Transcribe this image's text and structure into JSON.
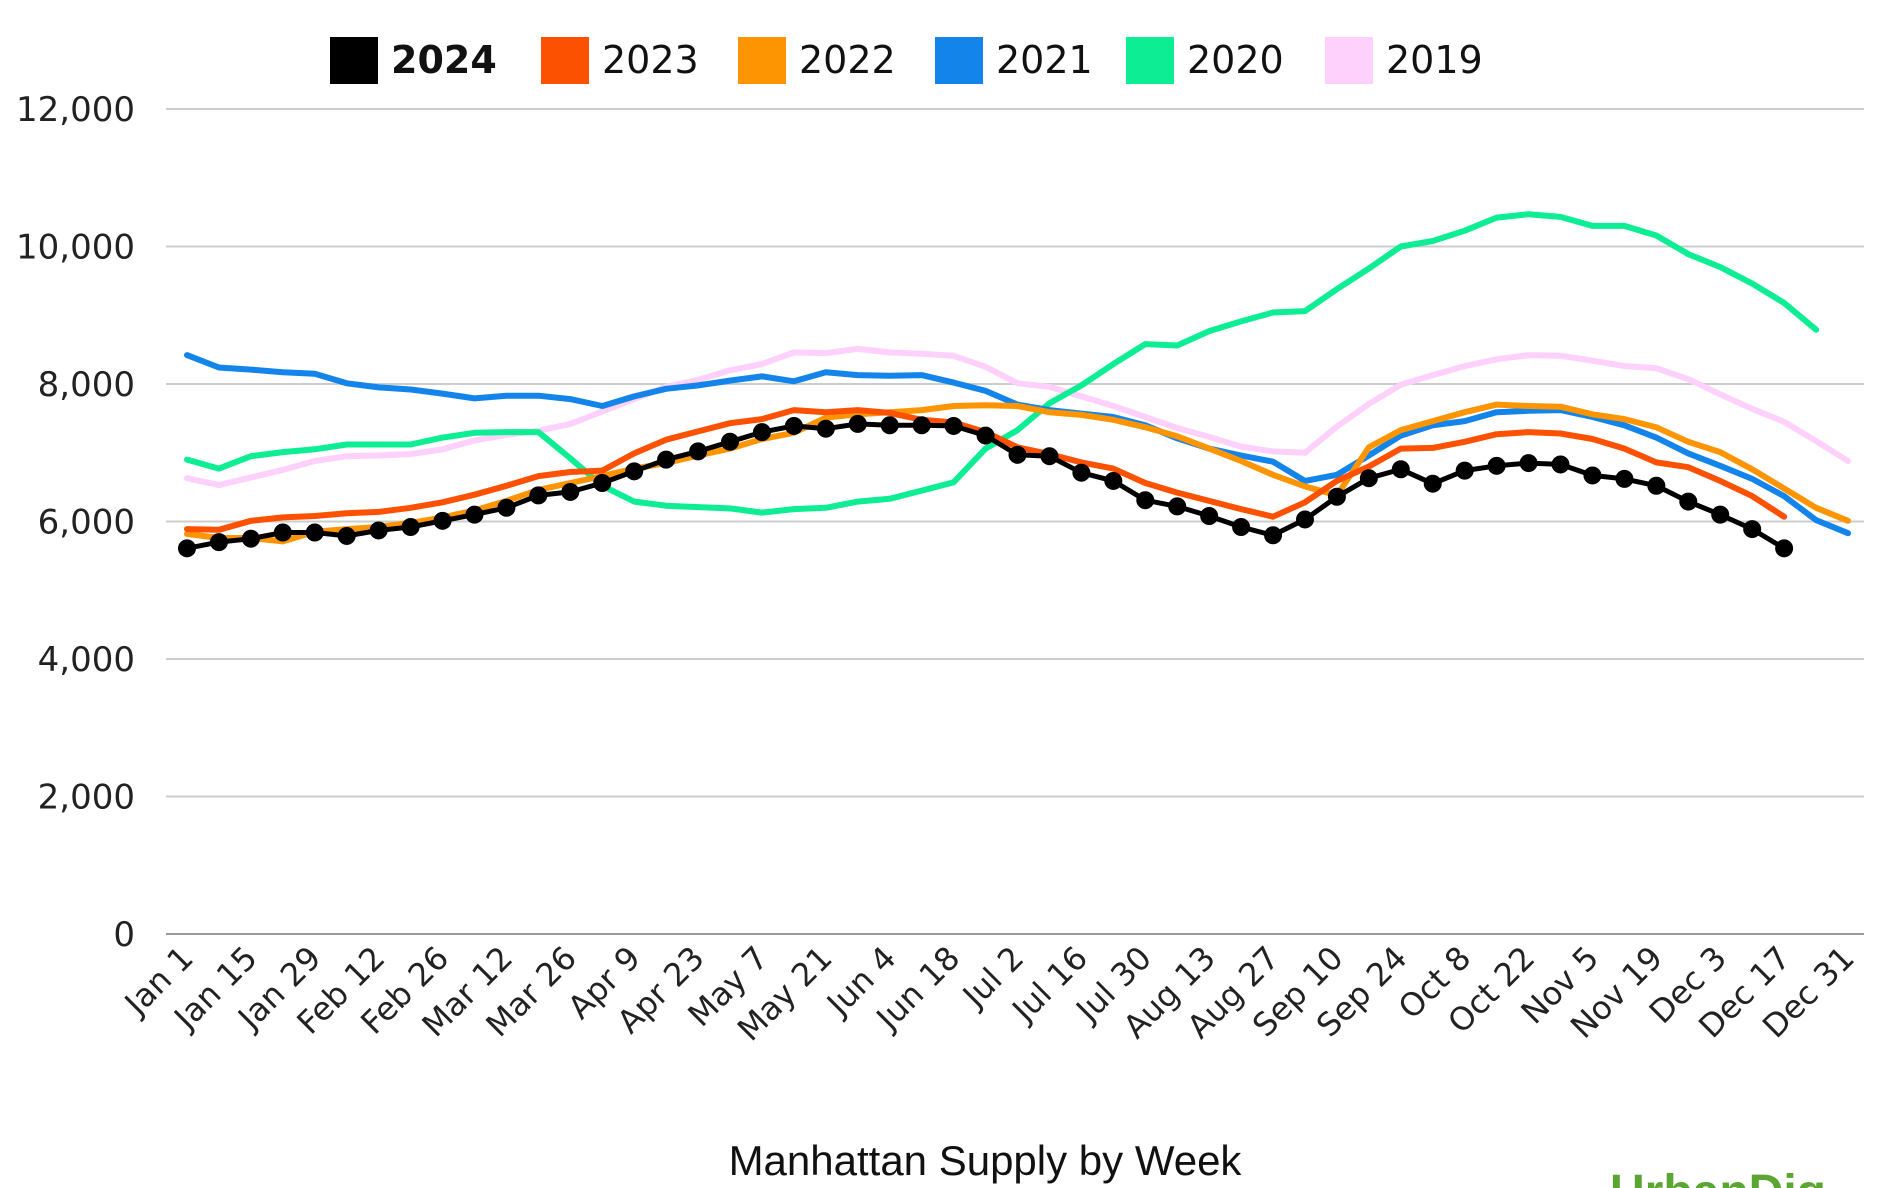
{
  "chart_data": {
    "type": "line",
    "title": "Manhattan Supply by Week",
    "xlabel": "Manhattan Supply by Week",
    "ylabel": "",
    "ylim": [
      0,
      12000
    ],
    "yticks": [
      0,
      2000,
      4000,
      6000,
      8000,
      10000,
      12000
    ],
    "ytick_labels": [
      "0",
      "2,000",
      "4,000",
      "6,000",
      "8,000",
      "10,000",
      "12,000"
    ],
    "grid": true,
    "legend_position": "top",
    "x_count": 53,
    "xtick_every": 2,
    "xtick_labels": [
      "Jan 1",
      "Jan 15",
      "Jan 29",
      "Feb 12",
      "Feb 26",
      "Mar 12",
      "Mar 26",
      "Apr 9",
      "Apr 23",
      "May 7",
      "May 21",
      "Jun 4",
      "Jun 18",
      "Jul 2",
      "Jul 16",
      "Jul 30",
      "Aug 13",
      "Aug 27",
      "Sep 10",
      "Sep 24",
      "Oct 8",
      "Oct 22",
      "Nov 5",
      "Nov 19",
      "Dec 3",
      "Dec 17",
      "Dec 31"
    ],
    "series": [
      {
        "name": "2019",
        "color": "#fdd1fb",
        "markers": false,
        "values": [
          6630,
          6530,
          6640,
          6750,
          6880,
          6950,
          6960,
          6980,
          7050,
          7180,
          7260,
          7320,
          7420,
          7600,
          7780,
          7960,
          8060,
          8200,
          8290,
          8460,
          8450,
          8510,
          8460,
          8440,
          8410,
          8250,
          8010,
          7960,
          7820,
          7680,
          7520,
          7360,
          7230,
          7090,
          7020,
          7000,
          7380,
          7710,
          7990,
          8130,
          8260,
          8360,
          8420,
          8410,
          8340,
          8260,
          8230,
          8070,
          7850,
          7640,
          7450,
          7170,
          6880
        ]
      },
      {
        "name": "2020",
        "color": "#0ded93",
        "markers": false,
        "values": [
          6900,
          6770,
          6950,
          7010,
          7050,
          7120,
          7120,
          7120,
          7220,
          7290,
          7300,
          7300,
          6920,
          6520,
          6290,
          6230,
          6210,
          6190,
          6130,
          6180,
          6200,
          6290,
          6330,
          6450,
          6570,
          7060,
          7330,
          7720,
          7980,
          8290,
          8580,
          8560,
          8770,
          8910,
          9040,
          9060,
          9380,
          9680,
          10000,
          10080,
          10230,
          10420,
          10470,
          10430,
          10300,
          10300,
          10160,
          9890,
          9700,
          9460,
          9180,
          8790
        ]
      },
      {
        "name": "2021",
        "color": "#1284ea",
        "markers": false,
        "values": [
          8420,
          8240,
          8210,
          8170,
          8150,
          8010,
          7950,
          7920,
          7860,
          7790,
          7830,
          7830,
          7780,
          7680,
          7820,
          7930,
          7980,
          8050,
          8110,
          8040,
          8170,
          8130,
          8120,
          8130,
          8020,
          7900,
          7700,
          7620,
          7570,
          7520,
          7400,
          7210,
          7060,
          6960,
          6870,
          6590,
          6680,
          6960,
          7250,
          7400,
          7460,
          7590,
          7610,
          7620,
          7520,
          7400,
          7220,
          6990,
          6810,
          6620,
          6370,
          6020,
          5830
        ]
      },
      {
        "name": "2022",
        "color": "#fd9502",
        "markers": false,
        "values": [
          5820,
          5760,
          5760,
          5710,
          5850,
          5890,
          5920,
          5980,
          6060,
          6160,
          6300,
          6460,
          6560,
          6660,
          6770,
          6850,
          6960,
          7060,
          7200,
          7290,
          7510,
          7560,
          7590,
          7620,
          7680,
          7690,
          7680,
          7590,
          7550,
          7480,
          7370,
          7240,
          7060,
          6880,
          6680,
          6510,
          6380,
          7080,
          7330,
          7460,
          7590,
          7700,
          7680,
          7670,
          7560,
          7490,
          7370,
          7160,
          7010,
          6760,
          6480,
          6200,
          6010
        ]
      },
      {
        "name": "2023",
        "color": "#fd5102",
        "markers": false,
        "values": [
          5890,
          5880,
          6010,
          6060,
          6080,
          6120,
          6140,
          6200,
          6280,
          6390,
          6520,
          6660,
          6720,
          6740,
          6990,
          7190,
          7310,
          7430,
          7490,
          7620,
          7590,
          7620,
          7580,
          7480,
          7440,
          7300,
          7080,
          6980,
          6860,
          6770,
          6560,
          6420,
          6300,
          6180,
          6070,
          6280,
          6590,
          6800,
          7060,
          7070,
          7160,
          7270,
          7300,
          7280,
          7200,
          7060,
          6860,
          6790,
          6590,
          6370,
          6070
        ]
      },
      {
        "name": "2024",
        "color": "#000000",
        "markers": true,
        "values": [
          5610,
          5700,
          5750,
          5840,
          5840,
          5790,
          5870,
          5920,
          6010,
          6100,
          6200,
          6380,
          6430,
          6560,
          6730,
          6900,
          7020,
          7160,
          7300,
          7390,
          7350,
          7420,
          7400,
          7400,
          7390,
          7250,
          6970,
          6950,
          6710,
          6590,
          6310,
          6220,
          6080,
          5920,
          5800,
          6030,
          6360,
          6630,
          6760,
          6550,
          6740,
          6810,
          6850,
          6830,
          6670,
          6620,
          6520,
          6290,
          6100,
          5890,
          5610
        ]
      }
    ]
  },
  "legend": [
    {
      "label": "2024",
      "color": "#000000",
      "bold": true
    },
    {
      "label": "2023",
      "color": "#fd5102"
    },
    {
      "label": "2022",
      "color": "#fd9502"
    },
    {
      "label": "2021",
      "color": "#1284ea"
    },
    {
      "label": "2020",
      "color": "#0ded93"
    },
    {
      "label": "2019",
      "color": "#fdd1fb"
    }
  ],
  "watermark": "UrbanDig",
  "colors": {
    "grid": "#cccccc",
    "axis": "#999999",
    "watermark": "#5ba532"
  }
}
